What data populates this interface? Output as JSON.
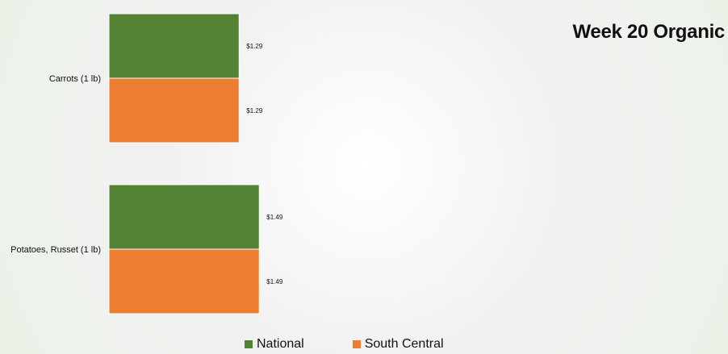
{
  "colors": {
    "national": "#548235",
    "south_central": "#ED7D31"
  },
  "chart_data": {
    "type": "bar",
    "orientation": "horizontal",
    "title": "Week 20 Organic",
    "categories": [
      "Carrots (1 lb)",
      "Potatoes, Russet (1 lb)"
    ],
    "series": [
      {
        "name": "National",
        "values": [
          1.29,
          1.49
        ],
        "labels": [
          "$1.29",
          "$1.49"
        ]
      },
      {
        "name": "South Central",
        "values": [
          1.29,
          1.49
        ],
        "labels": [
          "$1.29",
          "$1.49"
        ]
      }
    ],
    "xlim": [
      0,
      4.8
    ],
    "xlabel": "",
    "ylabel": "",
    "grid": false,
    "legend_position": "bottom"
  }
}
